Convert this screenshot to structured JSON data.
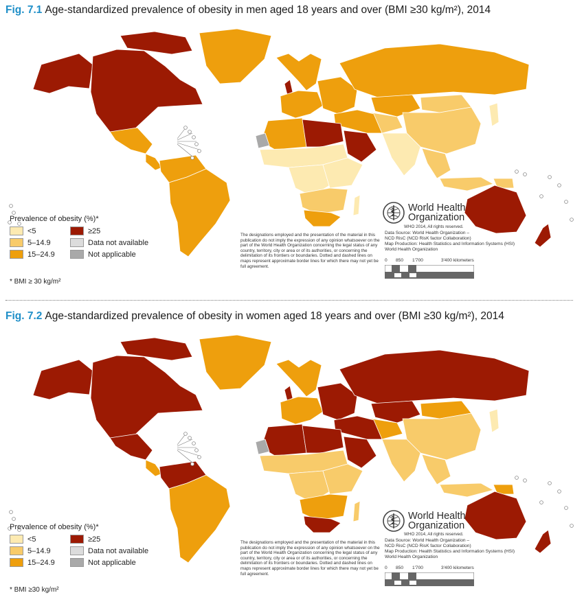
{
  "colors": {
    "lt5": "#fdeab1",
    "c5_14": "#f8cb6a",
    "c15_24": "#ee9f0d",
    "ge25": "#9c1a03",
    "not_available": "#dcdcdc",
    "not_applicable": "#a9a9a9",
    "title_blue": "#1f8fc8"
  },
  "figures": [
    {
      "num": "Fig. 7.1",
      "title": "Age-standardized prevalence of obesity in men aged 18 years and over (BMI ≥30 kg/m²), 2014",
      "footnote": "* BMI ≥ 30 kg/m²",
      "regions": {
        "north_america": "ge25",
        "alaska": "ge25",
        "greenland": "c15_24",
        "canada_islands": "ge25",
        "mexico": "c15_24",
        "central_america": "c15_24",
        "south_america": "c15_24",
        "colombia_venezuela": "c15_24",
        "iceland_scandinavia": "c15_24",
        "western_europe": "c15_24",
        "uk": "ge25",
        "eastern_europe": "c15_24",
        "russia": "c15_24",
        "kazakhstan": "c15_24",
        "central_asia": "c5_14",
        "mongolia": "c5_14",
        "china": "c5_14",
        "south_asia": "lt5",
        "southeast_asia": "c5_14",
        "japan": "lt5",
        "middle_east": "c15_24",
        "arabia": "ge25",
        "libya_egypt": "ge25",
        "north_africa_west": "c15_24",
        "sahel": "lt5",
        "central_africa": "lt5",
        "east_africa": "lt5",
        "southern_africa": "c5_14",
        "south_africa": "c15_24",
        "madagascar": "lt5",
        "australia": "ge25",
        "new_zealand": "ge25",
        "indonesia": "c5_14",
        "png": "c5_14",
        "western_sahara": "not_applicable"
      }
    },
    {
      "num": "Fig. 7.2",
      "title": "Age-standardized prevalence of obesity in women aged 18 years and over (BMI ≥30 kg/m²), 2014",
      "footnote": "* BMI ≥30 kg/m²",
      "regions": {
        "north_america": "ge25",
        "alaska": "ge25",
        "greenland": "c15_24",
        "canada_islands": "ge25",
        "mexico": "ge25",
        "central_america": "c15_24",
        "south_america": "c15_24",
        "colombia_venezuela": "ge25",
        "iceland_scandinavia": "c15_24",
        "western_europe": "c15_24",
        "uk": "ge25",
        "eastern_europe": "ge25",
        "russia": "ge25",
        "kazakhstan": "ge25",
        "central_asia": "c15_24",
        "mongolia": "c15_24",
        "china": "c5_14",
        "south_asia": "c5_14",
        "southeast_asia": "c5_14",
        "japan": "lt5",
        "middle_east": "ge25",
        "arabia": "ge25",
        "libya_egypt": "ge25",
        "north_africa_west": "ge25",
        "sahel": "c5_14",
        "central_africa": "c5_14",
        "east_africa": "c5_14",
        "southern_africa": "c15_24",
        "south_africa": "ge25",
        "madagascar": "c5_14",
        "australia": "ge25",
        "new_zealand": "ge25",
        "indonesia": "c5_14",
        "png": "c15_24",
        "western_sahara": "not_applicable"
      }
    }
  ],
  "legend": {
    "title": "Prevalence of obesity (%)*",
    "items": [
      {
        "key": "lt5",
        "label": "<5"
      },
      {
        "key": "ge25",
        "label": "≥25"
      },
      {
        "key": "c5_14",
        "label": "5–14.9"
      },
      {
        "key": "not_available",
        "label": "Data not available"
      },
      {
        "key": "c15_24",
        "label": "15–24.9"
      },
      {
        "key": "not_applicable",
        "label": "Not applicable"
      }
    ]
  },
  "disclaimer": "The designations employed and the presentation of the material in this publication do not imply the expression of any opinion whatsoever on the part of the World Health Organization concerning the legal status of any country, territory, city or area or of its authorities, or concerning the delimitation of its frontiers or boundaries. Dotted and dashed lines on maps represent approximate border lines for which there may not yet be full agreement.",
  "who": {
    "name_line1": "World Health",
    "name_line2": "Organization",
    "rights": "WHO 2014, All rights reserved.",
    "source_line1": "Data Source: World Health Organization –",
    "source_line2": "NCD RisC (NCD RisK factor Collaboration)",
    "source_line3": "Map Production: Health Statistics and Information Systems (HSI)",
    "source_line4": "World Health Organization"
  },
  "scale": {
    "labels": [
      "0",
      "850",
      "1'700",
      "3'400 kilometers"
    ]
  }
}
